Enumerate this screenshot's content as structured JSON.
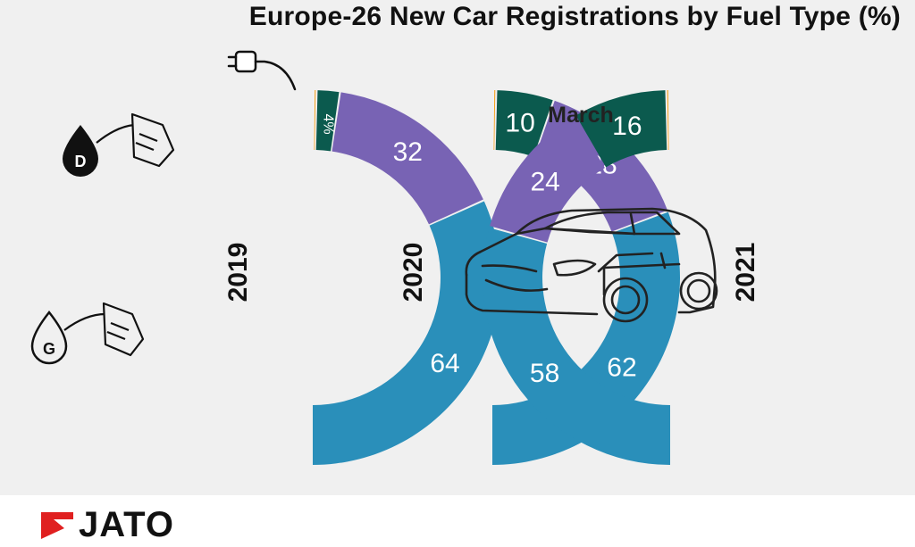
{
  "title": "Europe-26 New Car Registrations by Fuel Type (%)",
  "period_label": "March",
  "brand": "JATO",
  "colors": {
    "petrol": "#2a8fba",
    "diesel": "#7863b4",
    "electrified": "#0b5a4e",
    "other": "#f5a11c",
    "background": "#f0f0f0",
    "logo_red": "#e02020"
  },
  "icons": [
    "plug-icon",
    "diesel-pump-icon",
    "petrol-pump-icon",
    "car-icon"
  ],
  "chart_data": {
    "type": "pie",
    "subtype": "half-donut",
    "title": "Europe-26 New Car Registrations by Fuel Type (%)",
    "subtitle": "March",
    "series": [
      {
        "name": "2019",
        "values": [
          64,
          32,
          4,
          0.5
        ],
        "labels": [
          "64",
          "32",
          "4%",
          ""
        ]
      },
      {
        "name": "2020",
        "values": [
          62,
          28,
          10,
          0.5
        ],
        "labels": [
          "62",
          "28",
          "10",
          ""
        ]
      },
      {
        "name": "2021",
        "values": [
          58,
          24,
          16,
          0.5
        ],
        "labels": [
          "58",
          "24",
          "16",
          ""
        ]
      }
    ]
  }
}
